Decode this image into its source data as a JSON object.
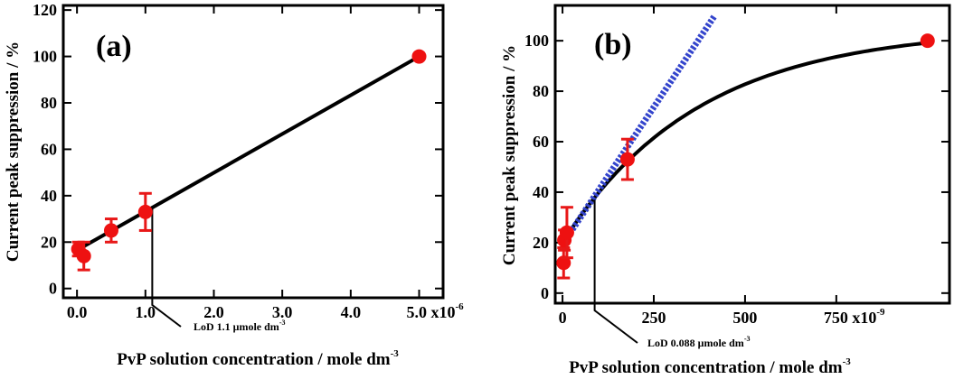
{
  "chart_data": [
    {
      "type": "scatter",
      "panel": "(a)",
      "xlabel": "PvP solution concentration / mole dm",
      "xlabel_sup": "-3",
      "ylabel": "Current peak suppression / %",
      "xlim": [
        -0.2,
        5.35
      ],
      "ylim": [
        -4,
        122
      ],
      "x_ticks": [
        0,
        1,
        2,
        3,
        4,
        5
      ],
      "x_tick_labels": [
        "0.0",
        "1.0",
        "2.0",
        "3.0",
        "4.0",
        "5.0 x10"
      ],
      "x_multiplier_exp": "-6",
      "y_ticks": [
        0,
        20,
        40,
        60,
        80,
        100,
        120
      ],
      "y_tick_labels": [
        "0",
        "20",
        "40",
        "60",
        "80",
        "100",
        "120"
      ],
      "points": [
        {
          "x": 0.02,
          "y": 17,
          "err": 3
        },
        {
          "x": 0.1,
          "y": 14,
          "err": 6
        },
        {
          "x": 0.5,
          "y": 25,
          "err": 5
        },
        {
          "x": 1.0,
          "y": 33,
          "err": 8
        },
        {
          "x": 5.0,
          "y": 100,
          "err": 0
        }
      ],
      "fit_line": [
        [
          0.0,
          16.5
        ],
        [
          5.0,
          100
        ]
      ],
      "lod": {
        "x": 1.1,
        "y": 34.5,
        "label": "LoD 1.1 μmole dm",
        "label_sup": "-3"
      }
    },
    {
      "type": "scatter",
      "panel": "(b)",
      "xlabel": "PvP solution concentration / mole dm",
      "xlabel_sup": "-3",
      "ylabel": "Current peak suppression / %",
      "xlim": [
        -20,
        1060
      ],
      "ylim": [
        -4,
        114
      ],
      "x_ticks": [
        0,
        250,
        500,
        750
      ],
      "x_tick_labels": [
        "0",
        "250",
        "500",
        "750 x10"
      ],
      "x_multiplier_exp": "-9",
      "y_ticks": [
        0,
        20,
        40,
        60,
        80,
        100
      ],
      "y_tick_labels": [
        "0",
        "20",
        "40",
        "60",
        "80",
        "100"
      ],
      "points": [
        {
          "x": 3,
          "y": 12,
          "err": 6
        },
        {
          "x": 5,
          "y": 21,
          "err": 4
        },
        {
          "x": 12,
          "y": 24,
          "err": 10
        },
        {
          "x": 178,
          "y": 53,
          "err": 8
        },
        {
          "x": 1000,
          "y": 100,
          "err": 0
        }
      ],
      "fit_curve": {
        "model": "saturation",
        "y0": 20,
        "a": 85,
        "k": 0.00268,
        "x_range": [
          0,
          1000
        ]
      },
      "tangent_line": {
        "x_range": [
          0,
          415
        ],
        "y0": 19.3,
        "slope": 0.2175
      },
      "lod": {
        "x": 88,
        "y": 37,
        "label": "LoD 0.088 μmole dm",
        "label_sup": "-3"
      }
    }
  ]
}
